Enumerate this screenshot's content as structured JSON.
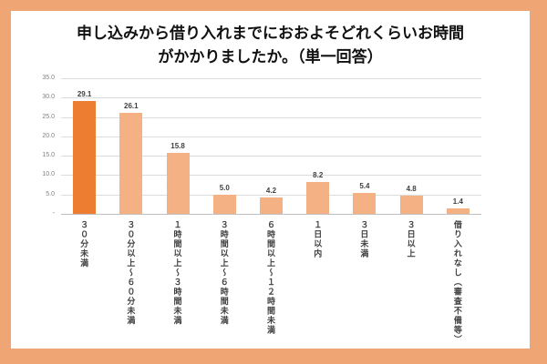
{
  "frame": {
    "border_color": "#F0A575",
    "panel_color": "#FFFFFF"
  },
  "title": {
    "line1": "申し込みから借り入れまでにおおよそどれくらいお時間",
    "line2": "がかかりましたか。（単一回答）"
  },
  "chart_data": {
    "type": "bar",
    "title": "申し込みから借り入れまでにおおよそどれくらいお時間がかかりましたか。（単一回答）",
    "categories": [
      "３０分未満",
      "３０分以上～６０分未満",
      "１時間以上～３時間未満",
      "３時間以上～６時間未満",
      "６時間以上～１２時間未満",
      "１日以内",
      "３日未満",
      "３日以上",
      "借り入れなし（審査不備等）"
    ],
    "values": [
      29.1,
      26.1,
      15.8,
      5.0,
      4.2,
      8.2,
      5.4,
      4.8,
      1.4
    ],
    "value_labels": [
      "29.1",
      "26.1",
      "15.8",
      "5.0",
      "4.2",
      "8.2",
      "5.4",
      "4.8",
      "1.4"
    ],
    "xlabel": "",
    "ylabel": "",
    "ylim": [
      0,
      35
    ],
    "yticks": [
      "35.0",
      "30.0",
      "25.0",
      "20.0",
      "15.0",
      "10.0",
      "5.0",
      "-"
    ],
    "grid": true,
    "legend": "none",
    "highlight_index": 0,
    "colors": {
      "highlight_bar": "#ED7D31",
      "default_bar": "#F4B183",
      "gridline": "#DCDCDC",
      "axis_line": "#C0C0C0",
      "axis_text": "#7F7F7F",
      "label_text": "#404040"
    }
  }
}
